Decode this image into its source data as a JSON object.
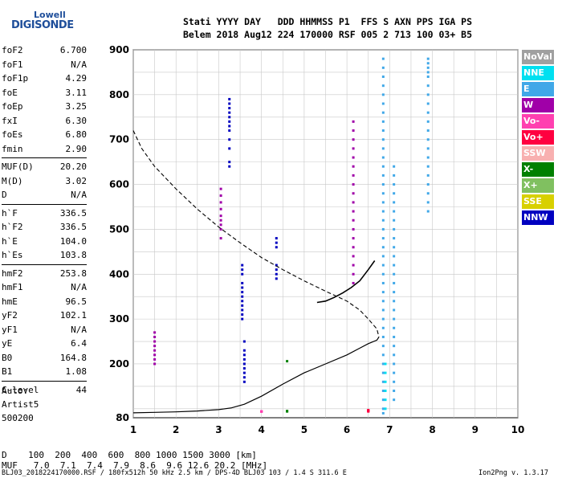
{
  "logo": {
    "top": "Lowell",
    "main": "DIGISONDE"
  },
  "header": {
    "line1": "Stati YYYY DAY   DDD HHMMSS P1  FFS S AXN PPS IGA PS",
    "line2": "Belem 2018 Aug12 224 170000 RSF 005 2 713 100 03+ B5"
  },
  "params": [
    [
      {
        "k": "foF2",
        "v": "6.700"
      },
      {
        "k": "foF1",
        "v": "N/A"
      },
      {
        "k": "foF1p",
        "v": "4.29"
      },
      {
        "k": "foE",
        "v": "3.11"
      },
      {
        "k": "foEp",
        "v": "3.25"
      },
      {
        "k": "fxI",
        "v": "6.30"
      },
      {
        "k": "foEs",
        "v": "6.80"
      },
      {
        "k": "fmin",
        "v": "2.90"
      }
    ],
    [
      {
        "k": "MUF(D)",
        "v": "20.20"
      },
      {
        "k": "M(D)",
        "v": "3.02"
      },
      {
        "k": "D",
        "v": "N/A"
      }
    ],
    [
      {
        "k": "h`F",
        "v": "336.5"
      },
      {
        "k": "h`F2",
        "v": "336.5"
      },
      {
        "k": "h`E",
        "v": "104.0"
      },
      {
        "k": "h`Es",
        "v": "103.8"
      }
    ],
    [
      {
        "k": "hmF2",
        "v": "253.8"
      },
      {
        "k": "hmF1",
        "v": "N/A"
      },
      {
        "k": "hmE",
        "v": "96.5"
      },
      {
        "k": "yF2",
        "v": "102.1"
      },
      {
        "k": "yF1",
        "v": "N/A"
      },
      {
        "k": "yE",
        "v": "6.4"
      },
      {
        "k": "B0",
        "v": "164.8"
      },
      {
        "k": "B1",
        "v": "1.08"
      }
    ],
    [
      {
        "k": "C-level",
        "v": "44"
      }
    ]
  ],
  "auto": {
    "l1": "Auto:",
    "l2": "Artist5",
    "l3": "500200"
  },
  "legend": [
    {
      "label": "NoVal",
      "color": "#a0a0a0"
    },
    {
      "label": "NNE",
      "color": "#00e0f0"
    },
    {
      "label": "E",
      "color": "#40a8e8"
    },
    {
      "label": "W",
      "color": "#a000a8"
    },
    {
      "label": "Vo-",
      "color": "#ff40b0"
    },
    {
      "label": "Vo+",
      "color": "#ff0040"
    },
    {
      "label": "SSW",
      "color": "#f8b0b0"
    },
    {
      "label": "X-",
      "color": "#008000"
    },
    {
      "label": "X+",
      "color": "#80c060"
    },
    {
      "label": "SSE",
      "color": "#d8d000"
    },
    {
      "label": "NNW",
      "color": "#0000c0"
    }
  ],
  "muf_table": {
    "d_row": "D    100  200  400  600  800 1000 1500 3000 [km]",
    "muf_row": "MUF   7.0  7.1  7.4  7.9  8.6  9.6 12.6 20.2 [MHz]"
  },
  "footer": {
    "left": "BLJ03_2018224170000.RSF / 180fx512h 50 kHz 2.5 km / DPS-4D BLJ03 103 / 1.4 S 311.6 E",
    "right": "Ion2Png v. 1.3.17"
  },
  "chart_data": {
    "type": "scatter",
    "title": "",
    "xlabel": "",
    "ylabel": "",
    "xlim": [
      1,
      10
    ],
    "ylim": [
      80,
      900
    ],
    "x_ticks": [
      1,
      2,
      3,
      4,
      5,
      6,
      7,
      8,
      9,
      10
    ],
    "y_ticks": [
      80,
      200,
      300,
      400,
      500,
      600,
      700,
      800,
      900
    ],
    "traces": {
      "dashed_profile": [
        [
          1.0,
          720
        ],
        [
          1.2,
          680
        ],
        [
          1.5,
          640
        ],
        [
          2.0,
          590
        ],
        [
          2.5,
          545
        ],
        [
          3.0,
          505
        ],
        [
          3.5,
          470
        ],
        [
          4.0,
          437
        ],
        [
          4.5,
          410
        ],
        [
          5.0,
          385
        ],
        [
          5.5,
          362
        ],
        [
          6.0,
          340
        ],
        [
          6.3,
          320
        ],
        [
          6.5,
          300
        ],
        [
          6.7,
          278
        ],
        [
          6.75,
          260
        ]
      ],
      "solid_profile": [
        [
          1.0,
          91
        ],
        [
          1.5,
          92
        ],
        [
          2.0,
          93
        ],
        [
          2.5,
          95
        ],
        [
          3.0,
          98
        ],
        [
          3.3,
          102
        ],
        [
          3.6,
          110
        ],
        [
          4.0,
          128
        ],
        [
          4.5,
          155
        ],
        [
          5.0,
          180
        ],
        [
          5.5,
          200
        ],
        [
          6.0,
          220
        ],
        [
          6.3,
          235
        ],
        [
          6.5,
          245
        ],
        [
          6.7,
          253
        ],
        [
          6.75,
          260
        ]
      ],
      "f2_trace": [
        [
          5.3,
          337
        ],
        [
          5.5,
          340
        ],
        [
          5.7,
          348
        ],
        [
          5.9,
          358
        ],
        [
          6.1,
          370
        ],
        [
          6.3,
          385
        ],
        [
          6.5,
          410
        ],
        [
          6.65,
          430
        ]
      ]
    },
    "echo_clusters": [
      {
        "color": "#0000c0",
        "x": 3.25,
        "y": [
          790,
          780,
          770,
          760,
          750,
          740,
          730,
          720,
          700,
          680,
          650,
          640
        ]
      },
      {
        "color": "#0000c0",
        "x": 3.55,
        "y": [
          420,
          410,
          400,
          380,
          370,
          360,
          350,
          340,
          330,
          320,
          310,
          300
        ]
      },
      {
        "color": "#0000c0",
        "x": 4.35,
        "y": [
          480,
          470,
          460,
          420,
          410,
          400,
          390
        ]
      },
      {
        "color": "#0000c0",
        "x": 3.6,
        "y": [
          250,
          230,
          220,
          210,
          200,
          190,
          180,
          170,
          160
        ]
      },
      {
        "color": "#a000a8",
        "x": 6.15,
        "y": [
          740,
          720,
          700,
          680,
          660,
          640,
          620,
          600,
          580,
          560,
          540,
          520,
          500,
          480,
          460,
          440,
          420,
          400,
          380
        ]
      },
      {
        "color": "#a000a8",
        "x": 3.05,
        "y": [
          590,
          575,
          560,
          545,
          530,
          520,
          510,
          500,
          480
        ]
      },
      {
        "color": "#a000a8",
        "x": 1.5,
        "y": [
          270,
          260,
          250,
          240,
          230,
          220,
          210,
          200
        ]
      },
      {
        "color": "#40a8e8",
        "x": 6.85,
        "y": [
          880,
          860,
          840,
          820,
          800,
          780,
          760,
          740,
          720,
          700,
          680,
          660,
          640,
          620,
          600,
          580,
          560,
          540,
          520,
          500,
          480,
          460,
          440,
          420,
          400,
          380,
          360,
          340,
          320,
          300,
          280,
          260,
          240,
          220,
          200,
          180,
          160,
          140,
          120,
          100,
          90
        ]
      },
      {
        "color": "#40a8e8",
        "x": 7.9,
        "y": [
          880,
          870,
          860,
          850,
          840,
          820,
          800,
          780,
          760,
          740,
          720,
          700,
          680,
          660,
          640,
          620,
          600,
          580,
          560,
          540
        ]
      },
      {
        "color": "#40a8e8",
        "x": 7.1,
        "y": [
          640,
          620,
          600,
          580,
          560,
          540,
          520,
          500,
          480,
          460,
          440,
          420,
          400,
          380,
          360,
          340,
          320,
          300,
          280,
          260,
          240,
          220,
          200,
          180,
          160,
          140,
          120
        ]
      },
      {
        "color": "#ff40b0",
        "x": 4.0,
        "y": [
          94,
          94,
          94,
          94,
          94
        ]
      },
      {
        "color": "#ff0040",
        "x": 6.5,
        "y": [
          94,
          95,
          96,
          97
        ]
      },
      {
        "color": "#008000",
        "x": 4.6,
        "y": [
          94,
          95,
          206
        ]
      },
      {
        "color": "#00e0f0",
        "x": 6.9,
        "y": [
          200,
          180,
          160,
          140,
          120,
          100
        ]
      }
    ]
  }
}
